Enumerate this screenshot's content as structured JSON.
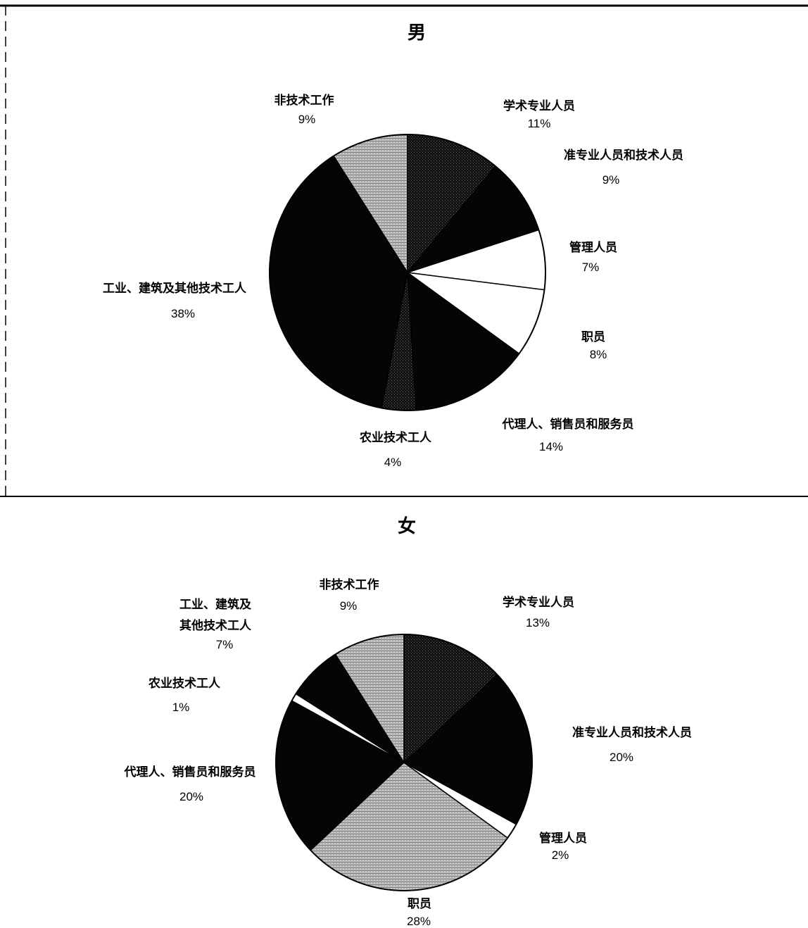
{
  "chart_data": [
    {
      "type": "pie",
      "title": "男",
      "slices": [
        {
          "label": "学术专业人员",
          "percent_label": "11%",
          "value": 11,
          "fill": "dark"
        },
        {
          "label": "准专业人员和技术人员",
          "percent_label": "9%",
          "value": 9,
          "fill": "black"
        },
        {
          "label": "管理人员",
          "percent_label": "7%",
          "value": 7,
          "fill": "white"
        },
        {
          "label": "职员",
          "percent_label": "8%",
          "value": 8,
          "fill": "white"
        },
        {
          "label": "代理人、销售员和服务员",
          "percent_label": "14%",
          "value": 14,
          "fill": "black"
        },
        {
          "label": "农业技术工人",
          "percent_label": "4%",
          "value": 4,
          "fill": "dark"
        },
        {
          "label": "工业、建筑及其他技术工人",
          "percent_label": "38%",
          "value": 38,
          "fill": "black"
        },
        {
          "label": "非技术工作",
          "percent_label": "9%",
          "value": 9,
          "fill": "gray"
        }
      ]
    },
    {
      "type": "pie",
      "title": "女",
      "slices": [
        {
          "label": "学术专业人员",
          "percent_label": "13%",
          "value": 13,
          "fill": "dark"
        },
        {
          "label": "准专业人员和技术人员",
          "percent_label": "20%",
          "value": 20,
          "fill": "black"
        },
        {
          "label": "管理人员",
          "percent_label": "2%",
          "value": 2,
          "fill": "white"
        },
        {
          "label": "职员",
          "percent_label": "28%",
          "value": 28,
          "fill": "gray"
        },
        {
          "label": "代理人、销售员和服务员",
          "percent_label": "20%",
          "value": 20,
          "fill": "black"
        },
        {
          "label": "农业技术工人",
          "percent_label": "1%",
          "value": 1,
          "fill": "white"
        },
        {
          "label": "工业、建筑及其他技术工人",
          "percent_label": "7%",
          "value": 7,
          "fill": "black"
        },
        {
          "label": "非技术工作",
          "percent_label": "9%",
          "value": 9,
          "fill": "gray"
        }
      ]
    }
  ],
  "colors": {
    "black": "#050505",
    "dark": "#1c1c1c",
    "gray": "#b9b9b9",
    "white": "#ffffff",
    "stroke": "#000000"
  }
}
